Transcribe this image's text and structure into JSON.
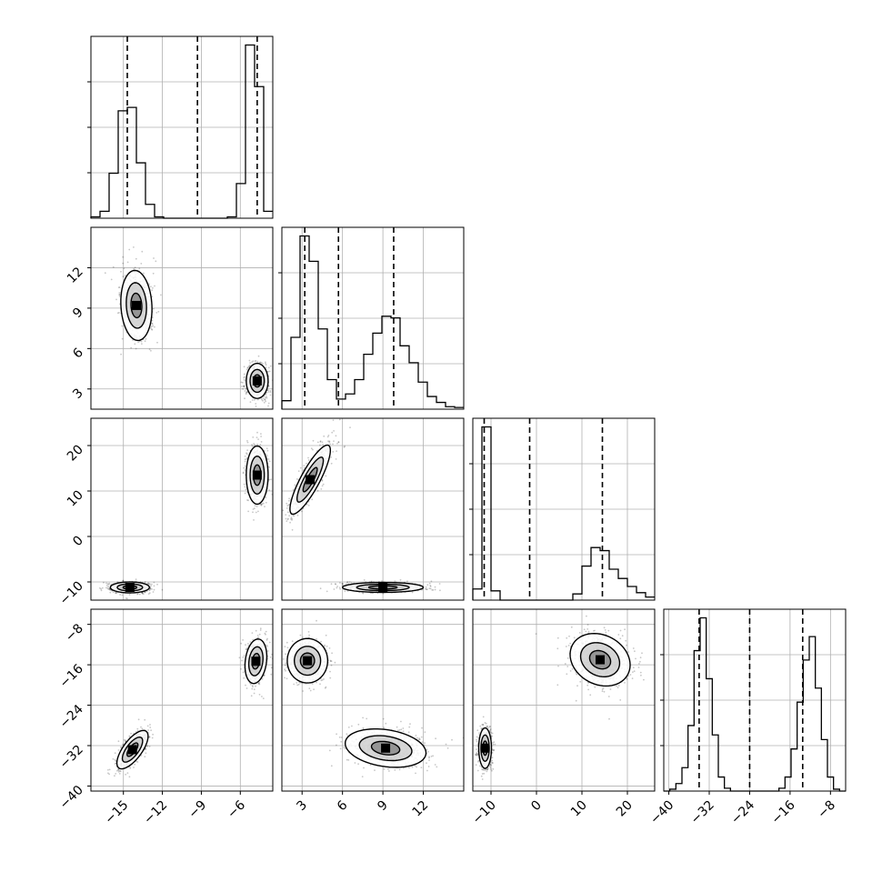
{
  "chart_data": {
    "type": "corner",
    "grid": true,
    "parameters": [
      {
        "range": [
          -17.5,
          -3.5
        ],
        "ticks": [
          -15,
          -12,
          -9,
          -6
        ],
        "tick_labels": [
          "−15",
          "−12",
          "−9",
          "−6"
        ],
        "quantiles": [
          -14.7,
          -9.3,
          -4.7
        ],
        "histogram": {
          "bins": [
            -17.5,
            -16.8,
            -16.1,
            -15.4,
            -14.7,
            -14.0,
            -13.3,
            -12.6,
            -11.9,
            -11.2,
            -10.5,
            -9.8,
            -9.1,
            -8.4,
            -7.7,
            -7.0,
            -6.3,
            -5.6,
            -4.9,
            -4.2,
            -3.5
          ],
          "counts": [
            2,
            10,
            65,
            155,
            160,
            80,
            20,
            2,
            0,
            0,
            0,
            0,
            0,
            0,
            0,
            2,
            50,
            250,
            190,
            10
          ]
        }
      },
      {
        "range": [
          1.5,
          15.0
        ],
        "ticks": [
          3,
          6,
          9,
          12
        ],
        "tick_labels": [
          "3",
          "6",
          "9",
          "12"
        ],
        "quantiles": [
          3.2,
          5.7,
          9.8
        ],
        "histogram": {
          "bins": [
            1.5,
            2.175,
            2.85,
            3.525,
            4.2,
            4.875,
            5.55,
            6.225,
            6.9,
            7.575,
            8.25,
            8.925,
            9.6,
            10.275,
            10.95,
            11.625,
            12.3,
            12.975,
            13.65,
            14.325,
            15.0
          ],
          "counts": [
            10,
            85,
            205,
            175,
            95,
            35,
            12,
            18,
            35,
            65,
            90,
            110,
            108,
            75,
            55,
            32,
            15,
            8,
            3,
            2
          ]
        }
      },
      {
        "range": [
          -14.0,
          26.0
        ],
        "ticks": [
          -10,
          0,
          10,
          20
        ],
        "tick_labels": [
          "−10",
          "0",
          "10",
          "20"
        ],
        "quantiles": [
          -11.5,
          -1.5,
          14.5
        ],
        "histogram": {
          "bins": [
            -14,
            -12,
            -10,
            -8,
            -6,
            -4,
            -2,
            0,
            2,
            4,
            6,
            8,
            10,
            12,
            14,
            16,
            18,
            20,
            22,
            24,
            26
          ],
          "counts": [
            18,
            280,
            15,
            0,
            0,
            0,
            0,
            0,
            0,
            0,
            0,
            10,
            55,
            85,
            80,
            50,
            35,
            22,
            12,
            5
          ]
        }
      },
      {
        "range": [
          -41.0,
          -5.0
        ],
        "ticks": [
          -40,
          -32,
          -24,
          -16,
          -8
        ],
        "tick_labels": [
          "−40",
          "−32",
          "−24",
          "−16",
          "−8"
        ],
        "quantiles": [
          -34.0,
          -24.0,
          -13.5
        ],
        "histogram": {
          "bins": [
            -41.0,
            -39.8,
            -38.6,
            -37.4,
            -36.2,
            -35.0,
            -33.8,
            -32.6,
            -31.4,
            -30.2,
            -29.0,
            -27.8,
            -26.6,
            -25.4,
            -24.2,
            -23.0,
            -21.8,
            -20.6,
            -19.4,
            -18.2,
            -17.0,
            -15.8,
            -14.6,
            -13.4,
            -12.2,
            -11.0,
            -9.8,
            -8.6,
            -7.4,
            -6.2,
            -5.0
          ],
          "counts": [
            0,
            2,
            8,
            25,
            70,
            150,
            185,
            120,
            60,
            15,
            3,
            0,
            0,
            0,
            0,
            0,
            0,
            0,
            0,
            3,
            15,
            45,
            95,
            140,
            165,
            110,
            55,
            15,
            2,
            0
          ]
        }
      }
    ],
    "pair_panels": [
      {
        "row": 1,
        "col": 0,
        "clusters": [
          {
            "mx": -14.0,
            "my": 9.2,
            "sx": 0.6,
            "sy": 1.3,
            "rho": -0.1
          },
          {
            "mx": -4.7,
            "my": 3.6,
            "sx": 0.42,
            "sy": 0.65,
            "rho": 0.0
          }
        ]
      },
      {
        "row": 2,
        "col": 0,
        "clusters": [
          {
            "mx": -14.5,
            "my": -11.2,
            "sx": 0.75,
            "sy": 0.6,
            "rho": 0.0
          },
          {
            "mx": -4.7,
            "my": 13.5,
            "sx": 0.42,
            "sy": 3.2,
            "rho": 0.0
          }
        ]
      },
      {
        "row": 2,
        "col": 1,
        "clusters": [
          {
            "mx": 3.6,
            "my": 12.5,
            "sx": 0.75,
            "sy": 3.8,
            "rho": 0.85
          },
          {
            "mx": 9.0,
            "my": -11.2,
            "sx": 1.5,
            "sy": 0.55,
            "rho": 0.0
          }
        ]
      },
      {
        "row": 3,
        "col": 0,
        "clusters": [
          {
            "mx": -14.3,
            "my": -32.8,
            "sx": 0.6,
            "sy": 1.9,
            "rho": 0.7
          },
          {
            "mx": -4.8,
            "my": -15.3,
            "sx": 0.42,
            "sy": 2.2,
            "rho": 0.2
          }
        ]
      },
      {
        "row": 3,
        "col": 1,
        "clusters": [
          {
            "mx": 3.4,
            "my": -15.2,
            "sx": 0.75,
            "sy": 2.2,
            "rho": 0.0
          },
          {
            "mx": 9.2,
            "my": -32.5,
            "sx": 1.5,
            "sy": 1.9,
            "rho": -0.25
          }
        ]
      },
      {
        "row": 3,
        "col": 2,
        "clusters": [
          {
            "mx": -11.3,
            "my": -32.5,
            "sx": 0.7,
            "sy": 2.0,
            "rho": 0.0
          },
          {
            "mx": 14.0,
            "my": -15.0,
            "sx": 3.3,
            "sy": 2.6,
            "rho": -0.2
          }
        ]
      }
    ]
  }
}
